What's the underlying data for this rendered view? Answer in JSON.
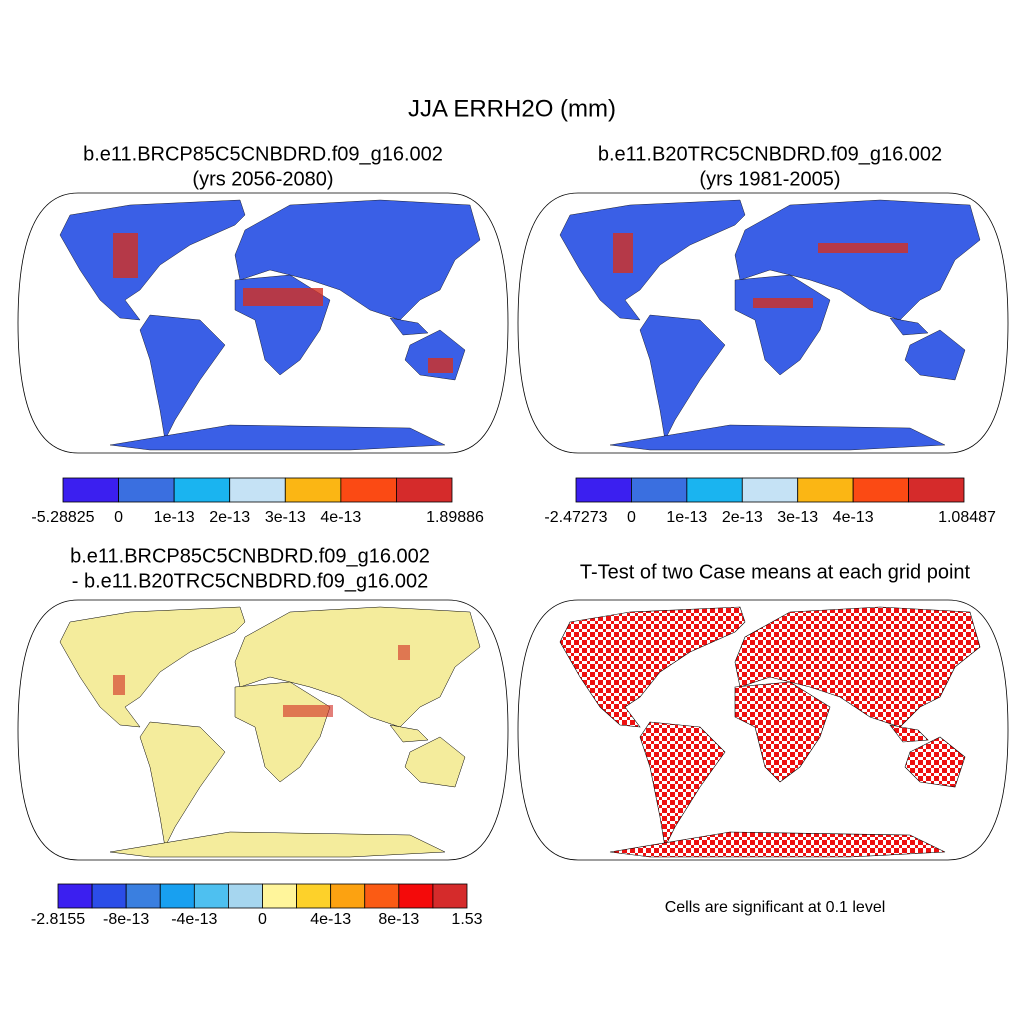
{
  "title": "JJA ERRH2O (mm)",
  "panels": [
    {
      "title": [
        "b.e11.BRCP85C5CNBDRD.f09_g16.002",
        "(yrs 2056-2080)"
      ],
      "colorbar": {
        "colors": [
          "#3b1ff0",
          "#3a6fe0",
          "#1ab4f0",
          "#c5e2f5",
          "#fbb614",
          "#fb4a14",
          "#d52b2b"
        ],
        "labels": [
          "-5.28825",
          "0",
          "1e-13",
          "2e-13",
          "3e-13",
          "4e-13",
          null,
          "1.89886"
        ]
      }
    },
    {
      "title": [
        "b.e11.B20TRC5CNBDRD.f09_g16.002",
        "(yrs 1981-2005)"
      ],
      "colorbar": {
        "colors": [
          "#3b1ff0",
          "#3a6fe0",
          "#1ab4f0",
          "#c5e2f5",
          "#fbb614",
          "#fb4a14",
          "#d52b2b"
        ],
        "labels": [
          "-2.47273",
          "0",
          "1e-13",
          "2e-13",
          "3e-13",
          "4e-13",
          null,
          "1.08487"
        ]
      }
    },
    {
      "title": [
        "b.e11.BRCP85C5CNBDRD.f09_g16.002",
        "- b.e11.B20TRC5CNBDRD.f09_g16.002"
      ],
      "colorbar": {
        "colors": [
          "#3b1ff0",
          "#2b4de8",
          "#3a7fe0",
          "#18a0f0",
          "#4ec0f0",
          "#a6d6ef",
          "#fff59b",
          "#fdd12a",
          "#fca211",
          "#fb5b14",
          "#f40a0a",
          "#d52b2b"
        ],
        "labels": [
          "-2.8155",
          null,
          "-8e-13",
          null,
          "-4e-13",
          null,
          "0",
          null,
          "4e-13",
          null,
          "8e-13",
          null,
          "1.53"
        ]
      }
    },
    {
      "title": [
        "T-Test of two Case means at each grid point"
      ],
      "note": "Cells are significant at 0.1 level"
    }
  ]
}
